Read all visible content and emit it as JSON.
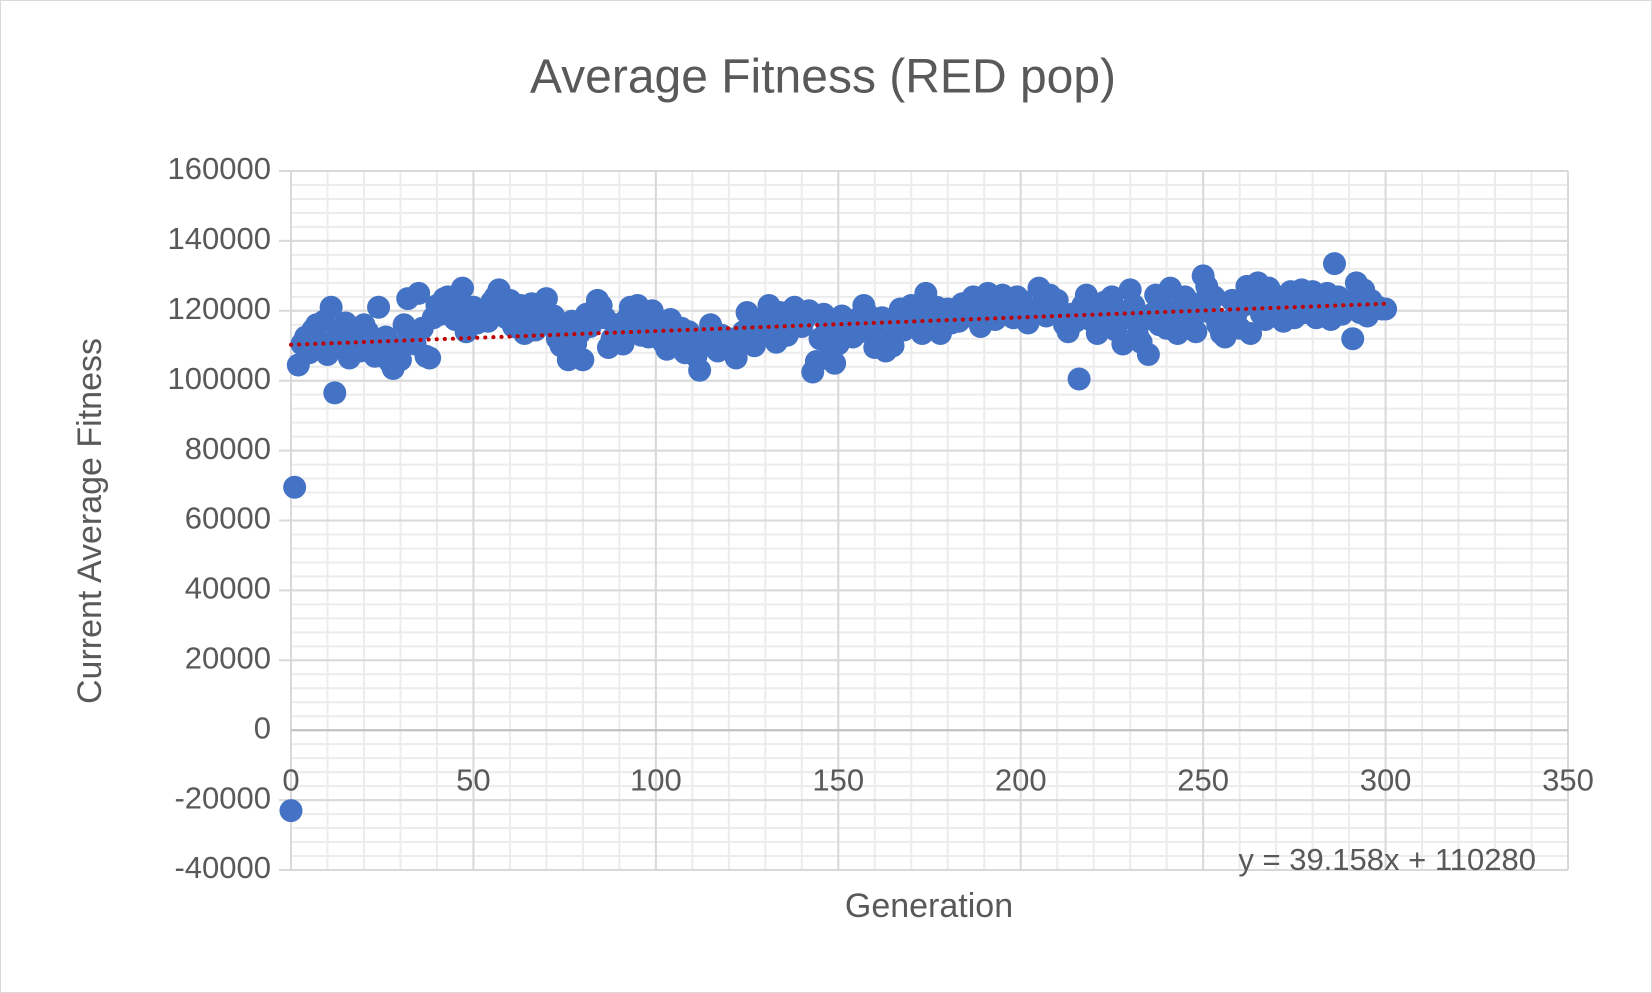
{
  "chart_data": {
    "type": "scatter",
    "title": "Average Fitness (RED pop)",
    "x_label": "Generation",
    "y_label": "Current Average Fitness",
    "color": "#4472c4",
    "xlim": [
      0,
      350
    ],
    "xticks": [
      0,
      50,
      100,
      150,
      200,
      250,
      300,
      350
    ],
    "ylim": [
      -40000,
      160000
    ],
    "yticks": [
      -40000,
      -20000,
      0,
      20000,
      40000,
      60000,
      80000,
      100000,
      120000,
      140000,
      160000
    ],
    "grid": true,
    "minor_grid": true,
    "x_minor_step": 10,
    "y_minor_step": 4000,
    "trendline": {
      "slope": 39.158,
      "intercept": 110280,
      "label": "y = 39.158x + 110280",
      "color": "#c00000"
    },
    "x": [
      0,
      1,
      2,
      3,
      4,
      5,
      6,
      7,
      8,
      9,
      10,
      11,
      12,
      13,
      14,
      15,
      16,
      17,
      18,
      19,
      20,
      21,
      22,
      23,
      24,
      25,
      26,
      27,
      28,
      29,
      30,
      31,
      32,
      33,
      34,
      35,
      36,
      37,
      38,
      39,
      40,
      41,
      42,
      43,
      44,
      45,
      46,
      47,
      48,
      49,
      50,
      51,
      52,
      53,
      54,
      55,
      56,
      57,
      58,
      59,
      60,
      61,
      62,
      63,
      64,
      65,
      66,
      67,
      68,
      69,
      70,
      71,
      72,
      73,
      74,
      75,
      76,
      77,
      78,
      79,
      80,
      81,
      82,
      83,
      84,
      85,
      86,
      87,
      88,
      89,
      90,
      91,
      92,
      93,
      94,
      95,
      96,
      97,
      98,
      99,
      100,
      101,
      102,
      103,
      104,
      105,
      106,
      107,
      108,
      109,
      110,
      111,
      112,
      113,
      114,
      115,
      116,
      117,
      118,
      119,
      120,
      121,
      122,
      123,
      124,
      125,
      126,
      127,
      128,
      129,
      130,
      131,
      132,
      133,
      134,
      135,
      136,
      137,
      138,
      139,
      140,
      141,
      142,
      143,
      144,
      145,
      146,
      147,
      148,
      149,
      150,
      151,
      152,
      153,
      154,
      155,
      156,
      157,
      158,
      159,
      160,
      161,
      162,
      163,
      164,
      165,
      166,
      167,
      168,
      169,
      170,
      171,
      172,
      173,
      174,
      175,
      176,
      177,
      178,
      179,
      180,
      181,
      182,
      183,
      184,
      185,
      186,
      187,
      188,
      189,
      190,
      191,
      192,
      193,
      194,
      195,
      196,
      197,
      198,
      199,
      200,
      201,
      202,
      203,
      204,
      205,
      206,
      207,
      208,
      209,
      210,
      211,
      212,
      213,
      214,
      215,
      216,
      217,
      218,
      219,
      220,
      221,
      222,
      223,
      224,
      225,
      226,
      227,
      228,
      229,
      230,
      231,
      232,
      233,
      234,
      235,
      236,
      237,
      238,
      239,
      240,
      241,
      242,
      243,
      244,
      245,
      246,
      247,
      248,
      249,
      250,
      251,
      252,
      253,
      254,
      255,
      256,
      257,
      258,
      259,
      260,
      261,
      262,
      263,
      264,
      265,
      266,
      267,
      268,
      269,
      270,
      271,
      272,
      273,
      274,
      275,
      276,
      277,
      278,
      279,
      280,
      281,
      282,
      283,
      284,
      285,
      286,
      287,
      288,
      289,
      290,
      291,
      292,
      293,
      294,
      295,
      296,
      297,
      298,
      299,
      300
    ],
    "values": [
      -23000,
      69500,
      104500,
      110500,
      112500,
      108000,
      114500,
      116000,
      111000,
      117000,
      107500,
      121000,
      96500,
      113500,
      110000,
      116500,
      106500,
      112000,
      113000,
      108500,
      116000,
      114000,
      111500,
      107000,
      121000,
      109000,
      112500,
      105500,
      103500,
      110000,
      106000,
      116000,
      123500,
      113000,
      110500,
      125000,
      115000,
      107000,
      106500,
      118000,
      121500,
      119000,
      123500,
      124000,
      120000,
      117500,
      122000,
      126500,
      114000,
      118500,
      121000,
      116500,
      120000,
      119500,
      117000,
      122500,
      124000,
      126000,
      121000,
      118000,
      123000,
      115500,
      119000,
      121500,
      113500,
      117000,
      122000,
      114500,
      118000,
      120500,
      123500,
      116000,
      118500,
      112000,
      110000,
      114500,
      106000,
      117000,
      110500,
      113500,
      106000,
      119000,
      115500,
      120000,
      123000,
      121500,
      118000,
      109500,
      112000,
      116000,
      114000,
      110500,
      117500,
      121000,
      119000,
      121500,
      113000,
      118500,
      112500,
      120000,
      117000,
      114500,
      111000,
      109000,
      117500,
      113000,
      110500,
      115000,
      108000,
      114000,
      112500,
      107000,
      103000,
      110000,
      112500,
      116000,
      111500,
      108500,
      113000,
      110000,
      112000,
      109500,
      106500,
      111000,
      114000,
      119500,
      116000,
      110000,
      117000,
      113500,
      118000,
      121500,
      115000,
      111000,
      119500,
      116500,
      113000,
      120000,
      121000,
      117000,
      115500,
      118000,
      120000,
      102500,
      105500,
      112000,
      119000,
      115000,
      108500,
      105000,
      110500,
      118500,
      113000,
      116000,
      112500,
      117500,
      114000,
      121500,
      119000,
      116000,
      109500,
      113000,
      118000,
      108500,
      111500,
      110000,
      117000,
      120500,
      114500,
      118000,
      121500,
      116000,
      119000,
      113500,
      125000,
      117500,
      115000,
      121000,
      113500,
      118000,
      120500,
      116500,
      119500,
      117000,
      122000,
      120000,
      118500,
      124000,
      122500,
      115500,
      119000,
      125000,
      121500,
      117500,
      123500,
      124500,
      120000,
      122000,
      118000,
      124000,
      123000,
      121000,
      116500,
      119500,
      120500,
      126500,
      122000,
      118500,
      124500,
      121000,
      123000,
      118500,
      116000,
      114000,
      119000,
      117000,
      100500,
      121500,
      124500,
      117500,
      120000,
      113500,
      116000,
      122500,
      118500,
      124000,
      114500,
      120000,
      110500,
      118000,
      126000,
      121500,
      113000,
      111000,
      117500,
      107500,
      119000,
      124500,
      116000,
      121000,
      115000,
      126500,
      120000,
      113500,
      118000,
      124000,
      121000,
      116500,
      114000,
      122000,
      130000,
      127000,
      119500,
      124000,
      116000,
      113500,
      112500,
      117000,
      123000,
      119000,
      115000,
      121500,
      127000,
      113500,
      125000,
      128000,
      119000,
      117500,
      126500,
      122000,
      118500,
      124000,
      117000,
      120500,
      125500,
      118000,
      122000,
      126000,
      119500,
      121500,
      125500,
      118000,
      123500,
      120000,
      125000,
      117500,
      133500,
      124000,
      119000,
      121000,
      122500,
      112000,
      128000,
      119500,
      126000,
      118500,
      123000,
      120500,
      121000,
      120500,
      120500
    ]
  }
}
